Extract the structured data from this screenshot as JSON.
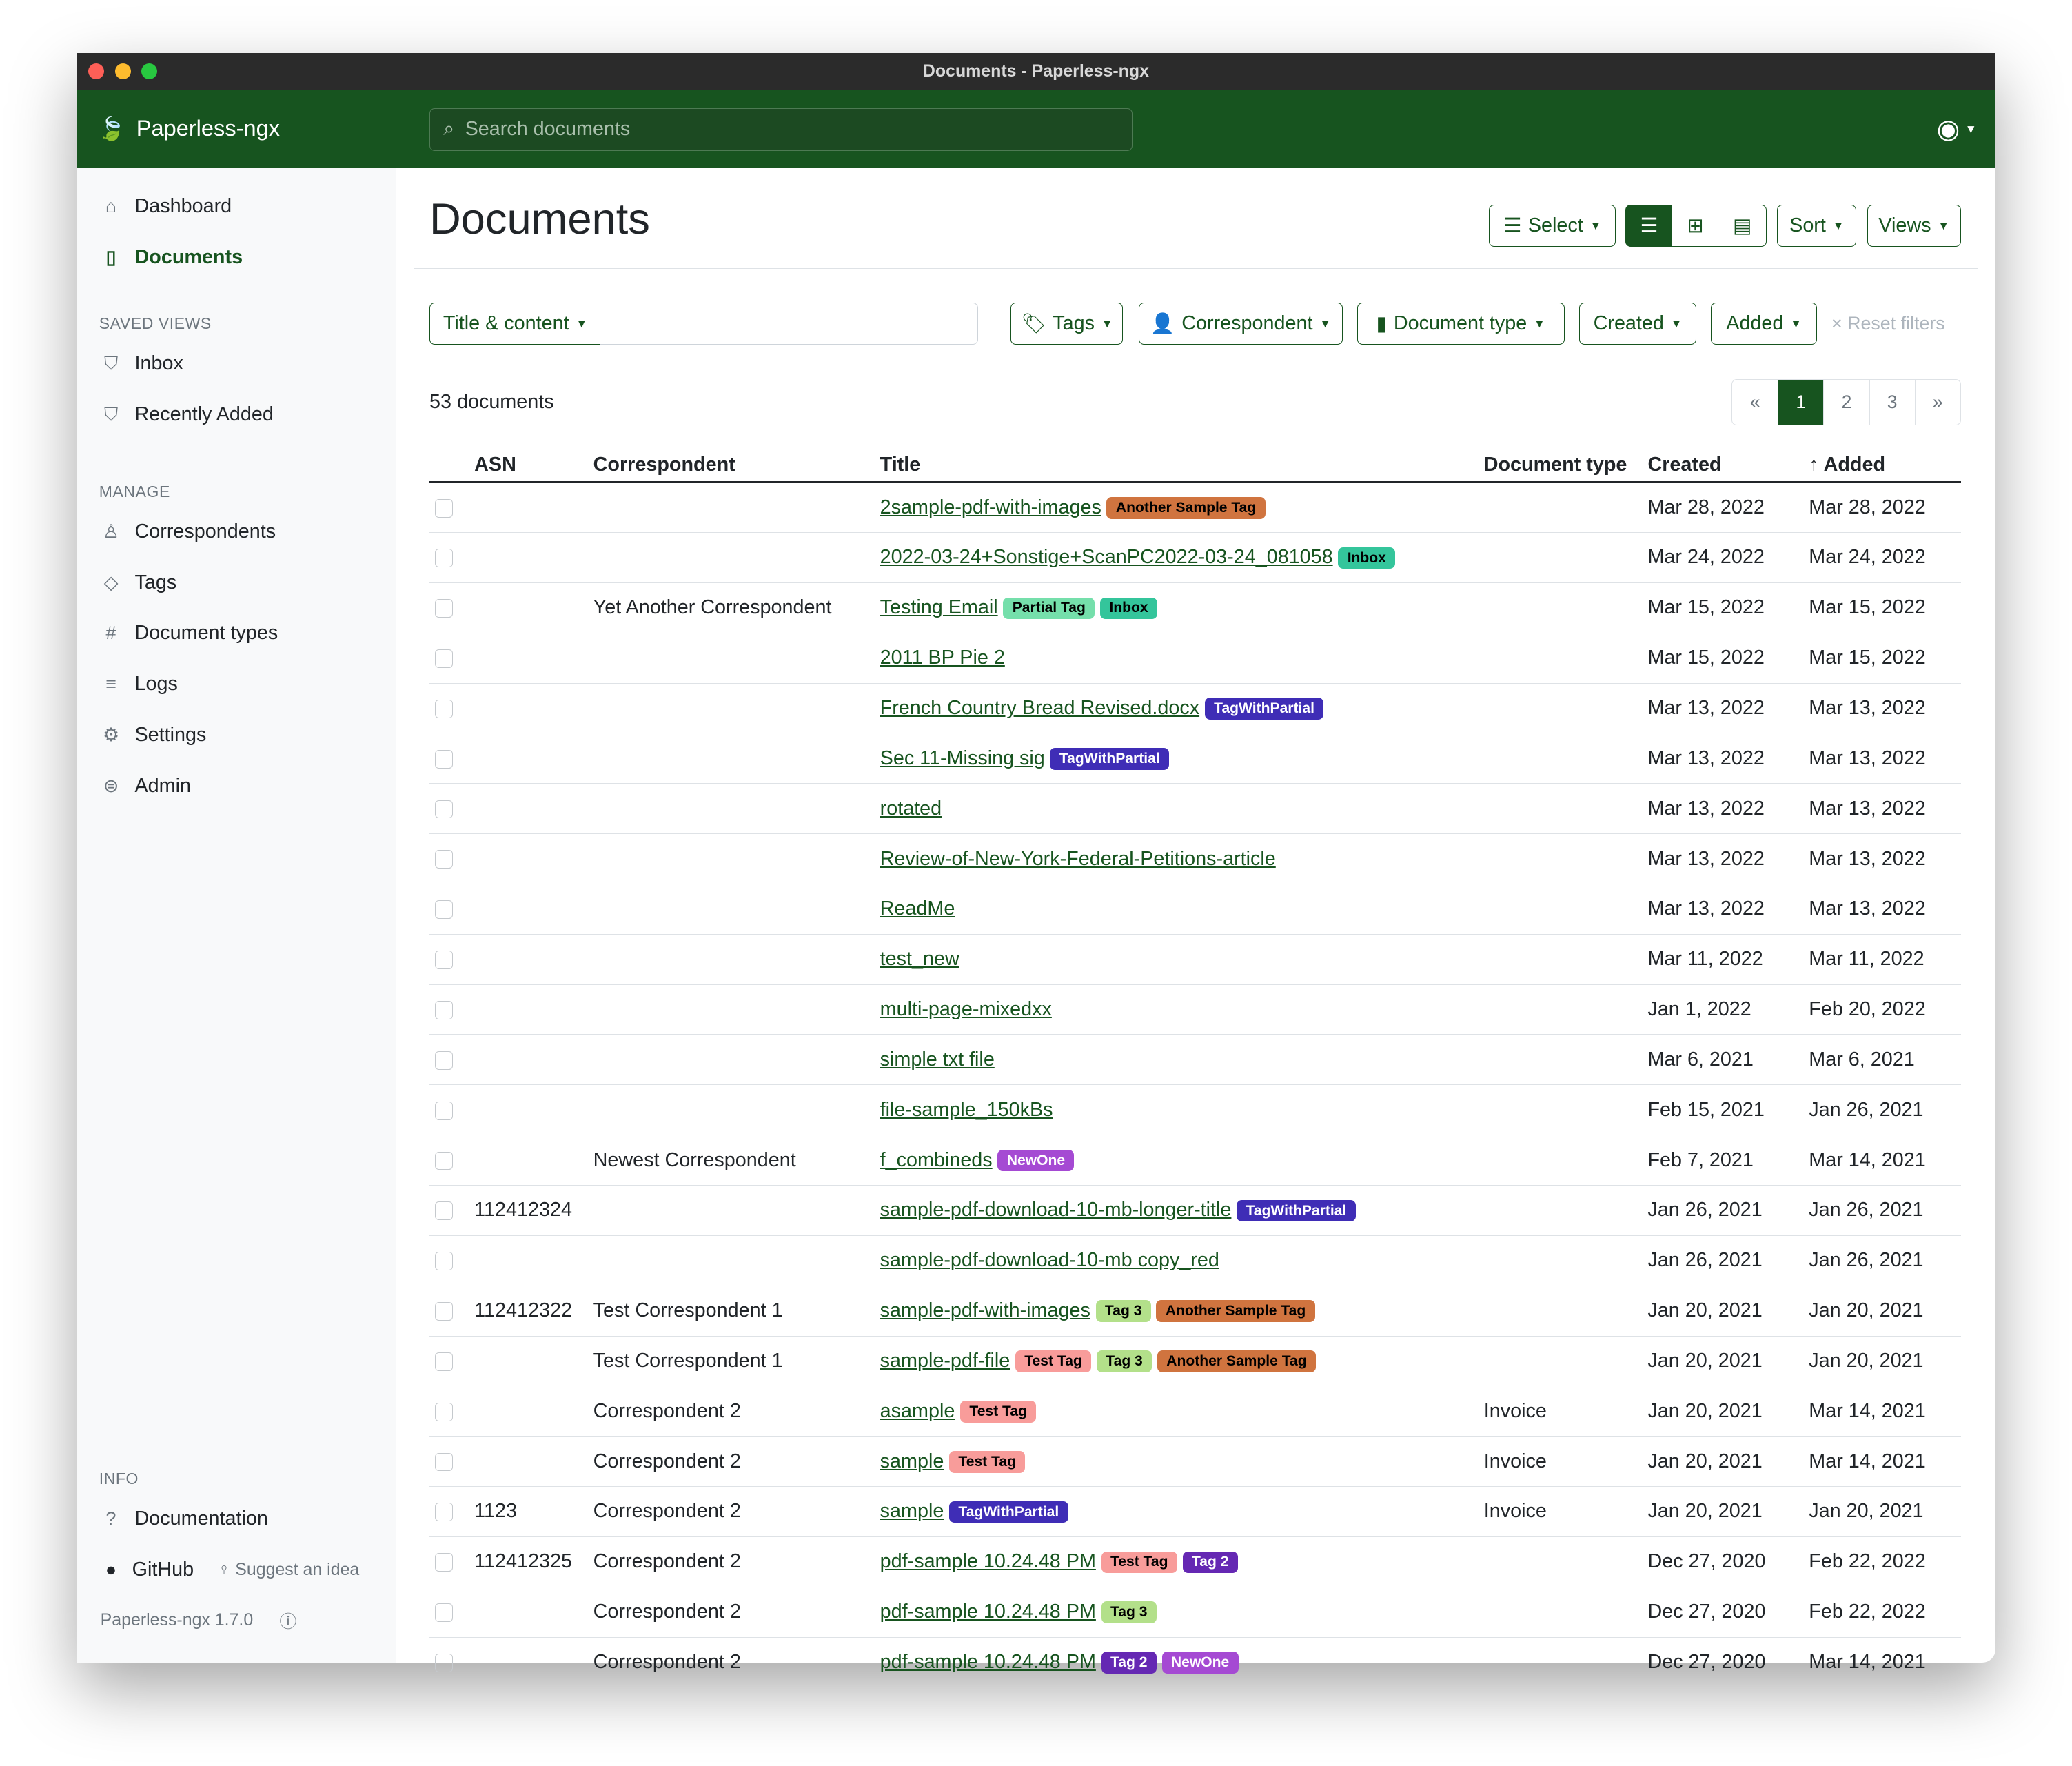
{
  "window": {
    "title": "Documents - Paperless-ngx"
  },
  "header": {
    "brand": "Paperless-ngx",
    "search_placeholder": "Search documents"
  },
  "sidebar": {
    "nav": [
      {
        "label": "Dashboard",
        "icon": "house-icon"
      },
      {
        "label": "Documents",
        "icon": "file-icon",
        "active": true
      }
    ],
    "saved_views_heading": "SAVED VIEWS",
    "saved_views": [
      {
        "label": "Inbox",
        "icon": "funnel-icon"
      },
      {
        "label": "Recently Added",
        "icon": "funnel-icon"
      }
    ],
    "manage_heading": "MANAGE",
    "manage": [
      {
        "label": "Correspondents",
        "icon": "person-icon"
      },
      {
        "label": "Tags",
        "icon": "tags-icon"
      },
      {
        "label": "Document types",
        "icon": "hash-icon"
      },
      {
        "label": "Logs",
        "icon": "list-icon"
      },
      {
        "label": "Settings",
        "icon": "gear-icon"
      },
      {
        "label": "Admin",
        "icon": "toggles-icon"
      }
    ],
    "info_heading": "INFO",
    "documentation": "Documentation",
    "github": "GitHub",
    "suggest": "Suggest an idea",
    "version": "Paperless-ngx 1.7.0"
  },
  "page": {
    "title": "Documents",
    "select": "Select",
    "sort": "Sort",
    "views": "Views"
  },
  "filters": {
    "title_content": "Title & content",
    "query_value": "",
    "tags": "Tags",
    "correspondent": "Correspondent",
    "document_type": "Document type",
    "created": "Created",
    "added": "Added",
    "reset": "Reset filters"
  },
  "count": "53 documents",
  "pagination": {
    "prev": "«",
    "pages": [
      "1",
      "2",
      "3"
    ],
    "current": "1",
    "next": "»"
  },
  "table": {
    "columns": [
      "ASN",
      "Correspondent",
      "Title",
      "Document type",
      "Created",
      "Added"
    ],
    "sort_column": "Added",
    "tag_colors": {
      "Another Sample Tag": [
        "#d0743f",
        "#000"
      ],
      "Inbox": [
        "#34c59b",
        "#000"
      ],
      "Partial Tag": [
        "#75dfab",
        "#000"
      ],
      "TagWithPartial": [
        "#3f2db6",
        "#fff"
      ],
      "NewOne": [
        "#a54ad3",
        "#fff"
      ],
      "Tag 3": [
        "#b3e08a",
        "#000"
      ],
      "Test Tag": [
        "#f89c9a",
        "#000"
      ],
      "Tag 2": [
        "#6528b3",
        "#fff"
      ]
    },
    "rows": [
      {
        "asn": "",
        "correspondent": "",
        "title": "2sample-pdf-with-images",
        "tags": [
          "Another Sample Tag"
        ],
        "type": "",
        "created": "Mar 28, 2022",
        "added": "Mar 28, 2022"
      },
      {
        "asn": "",
        "correspondent": "",
        "title": "2022-03-24+Sonstige+ScanPC2022-03-24_081058",
        "tags": [
          "Inbox"
        ],
        "type": "",
        "created": "Mar 24, 2022",
        "added": "Mar 24, 2022"
      },
      {
        "asn": "",
        "correspondent": "Yet Another Correspondent",
        "title": "Testing Email",
        "tags": [
          "Partial Tag",
          "Inbox"
        ],
        "type": "",
        "created": "Mar 15, 2022",
        "added": "Mar 15, 2022"
      },
      {
        "asn": "",
        "correspondent": "",
        "title": "2011 BP Pie 2",
        "tags": [],
        "type": "",
        "created": "Mar 15, 2022",
        "added": "Mar 15, 2022"
      },
      {
        "asn": "",
        "correspondent": "",
        "title": "French Country Bread Revised.docx",
        "tags": [
          "TagWithPartial"
        ],
        "type": "",
        "created": "Mar 13, 2022",
        "added": "Mar 13, 2022"
      },
      {
        "asn": "",
        "correspondent": "",
        "title": "Sec 11-Missing sig",
        "tags": [
          "TagWithPartial"
        ],
        "type": "",
        "created": "Mar 13, 2022",
        "added": "Mar 13, 2022"
      },
      {
        "asn": "",
        "correspondent": "",
        "title": "rotated",
        "tags": [],
        "type": "",
        "created": "Mar 13, 2022",
        "added": "Mar 13, 2022"
      },
      {
        "asn": "",
        "correspondent": "",
        "title": "Review-of-New-York-Federal-Petitions-article",
        "tags": [],
        "type": "",
        "created": "Mar 13, 2022",
        "added": "Mar 13, 2022"
      },
      {
        "asn": "",
        "correspondent": "",
        "title": "ReadMe",
        "tags": [],
        "type": "",
        "created": "Mar 13, 2022",
        "added": "Mar 13, 2022"
      },
      {
        "asn": "",
        "correspondent": "",
        "title": "test_new",
        "tags": [],
        "type": "",
        "created": "Mar 11, 2022",
        "added": "Mar 11, 2022"
      },
      {
        "asn": "",
        "correspondent": "",
        "title": "multi-page-mixedxx",
        "tags": [],
        "type": "",
        "created": "Jan 1, 2022",
        "added": "Feb 20, 2022"
      },
      {
        "asn": "",
        "correspondent": "",
        "title": "simple txt file",
        "tags": [],
        "type": "",
        "created": "Mar 6, 2021",
        "added": "Mar 6, 2021"
      },
      {
        "asn": "",
        "correspondent": "",
        "title": "file-sample_150kBs",
        "tags": [],
        "type": "",
        "created": "Feb 15, 2021",
        "added": "Jan 26, 2021"
      },
      {
        "asn": "",
        "correspondent": "Newest Correspondent",
        "title": "f_combineds",
        "tags": [
          "NewOne"
        ],
        "type": "",
        "created": "Feb 7, 2021",
        "added": "Mar 14, 2021"
      },
      {
        "asn": "112412324",
        "correspondent": "",
        "title": "sample-pdf-download-10-mb-longer-title",
        "tags": [
          "TagWithPartial"
        ],
        "type": "",
        "created": "Jan 26, 2021",
        "added": "Jan 26, 2021"
      },
      {
        "asn": "",
        "correspondent": "",
        "title": "sample-pdf-download-10-mb copy_red",
        "tags": [],
        "type": "",
        "created": "Jan 26, 2021",
        "added": "Jan 26, 2021"
      },
      {
        "asn": "112412322",
        "correspondent": "Test Correspondent 1",
        "title": "sample-pdf-with-images",
        "tags": [
          "Tag 3",
          "Another Sample Tag"
        ],
        "type": "",
        "created": "Jan 20, 2021",
        "added": "Jan 20, 2021"
      },
      {
        "asn": "",
        "correspondent": "Test Correspondent 1",
        "title": "sample-pdf-file",
        "tags": [
          "Test Tag",
          "Tag 3",
          "Another Sample Tag"
        ],
        "type": "",
        "created": "Jan 20, 2021",
        "added": "Jan 20, 2021"
      },
      {
        "asn": "",
        "correspondent": "Correspondent 2",
        "title": "asample",
        "tags": [
          "Test Tag"
        ],
        "type": "Invoice",
        "created": "Jan 20, 2021",
        "added": "Mar 14, 2021"
      },
      {
        "asn": "",
        "correspondent": "Correspondent 2",
        "title": "sample",
        "tags": [
          "Test Tag"
        ],
        "type": "Invoice",
        "created": "Jan 20, 2021",
        "added": "Mar 14, 2021"
      },
      {
        "asn": "1123",
        "correspondent": "Correspondent 2",
        "title": "sample",
        "tags": [
          "TagWithPartial"
        ],
        "type": "Invoice",
        "created": "Jan 20, 2021",
        "added": "Jan 20, 2021"
      },
      {
        "asn": "112412325",
        "correspondent": "Correspondent 2",
        "title": "pdf-sample 10.24.48 PM",
        "tags": [
          "Test Tag",
          "Tag 2"
        ],
        "type": "",
        "created": "Dec 27, 2020",
        "added": "Feb 22, 2022"
      },
      {
        "asn": "",
        "correspondent": "Correspondent 2",
        "title": "pdf-sample 10.24.48 PM",
        "tags": [
          "Tag 3"
        ],
        "type": "",
        "created": "Dec 27, 2020",
        "added": "Feb 22, 2022"
      },
      {
        "asn": "",
        "correspondent": "Correspondent 2",
        "title": "pdf-sample 10.24.48 PM",
        "tags": [
          "Tag 2",
          "NewOne"
        ],
        "type": "",
        "created": "Dec 27, 2020",
        "added": "Mar 14, 2021"
      }
    ]
  }
}
